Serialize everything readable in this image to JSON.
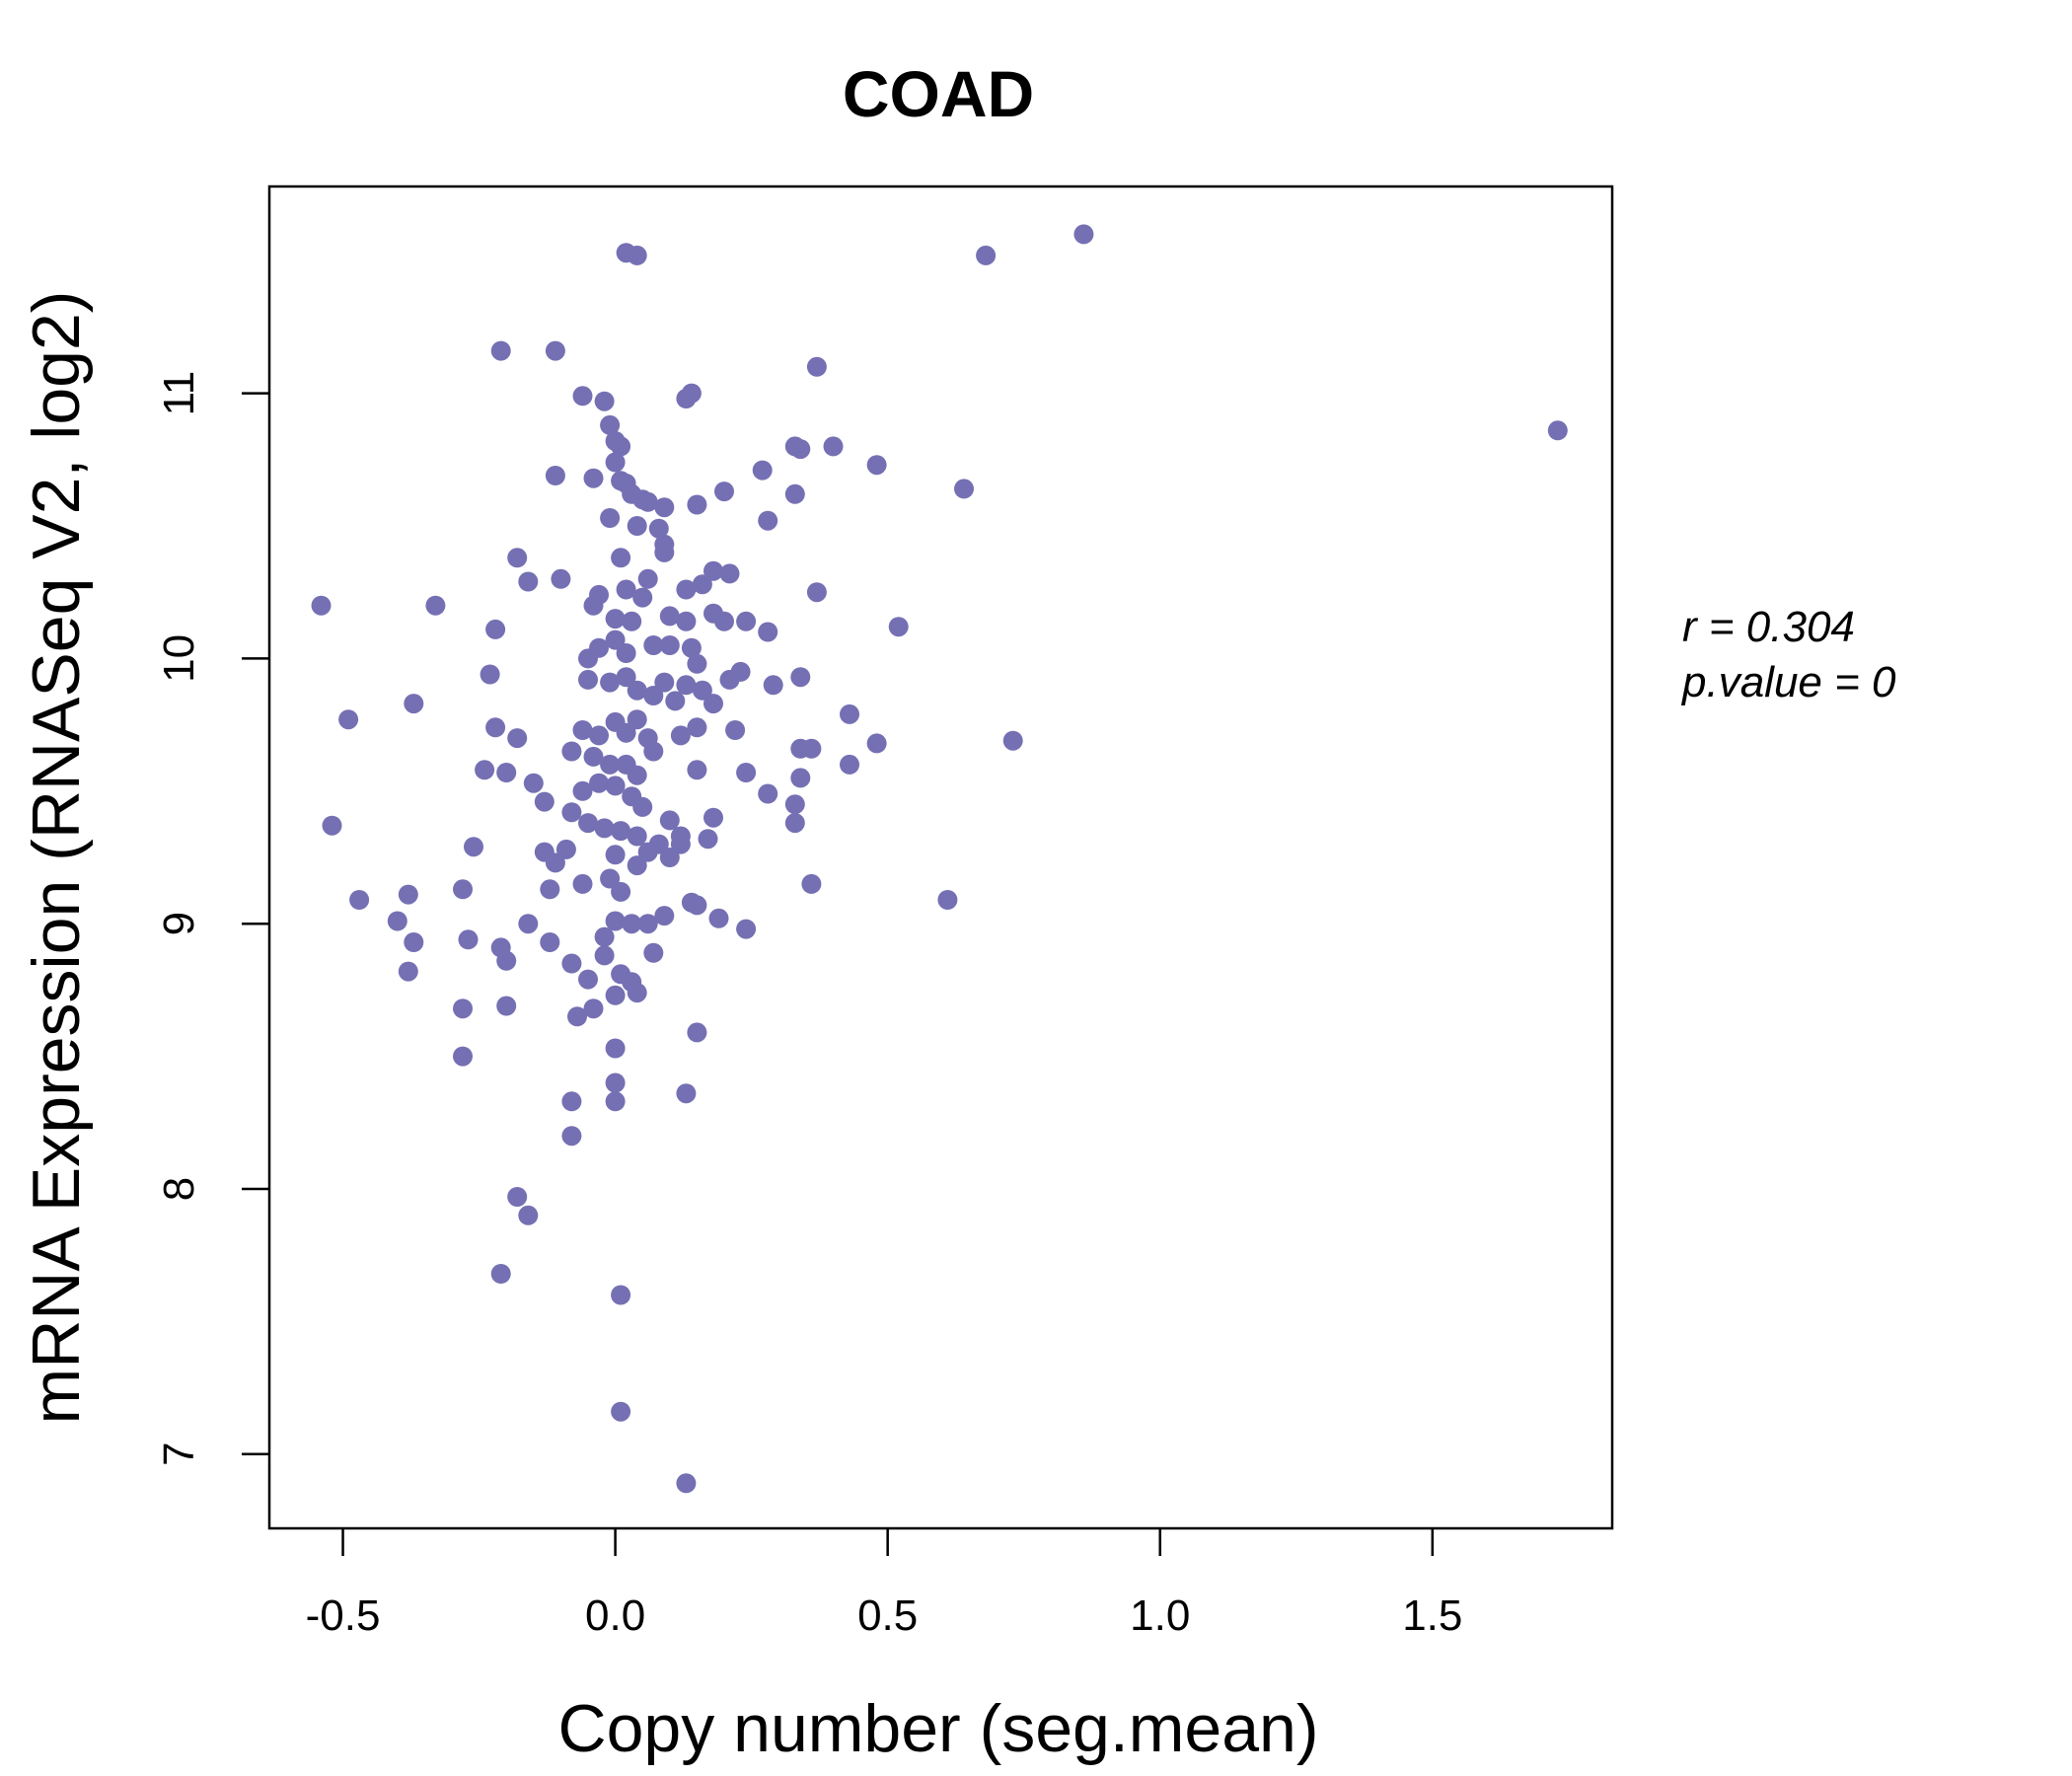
{
  "chart_data": {
    "type": "scatter",
    "title": "COAD",
    "xlabel": "Copy number (seg.mean)",
    "ylabel": "mRNA Expression (RNASeq V2, log2)",
    "xlim": [
      -0.635,
      1.83
    ],
    "ylim": [
      6.72,
      11.78
    ],
    "xticks": [
      -0.5,
      0.0,
      0.5,
      1.0,
      1.5
    ],
    "xtick_labels": [
      "-0.5",
      "0.0",
      "0.5",
      "1.0",
      "1.5"
    ],
    "yticks": [
      7,
      8,
      9,
      10,
      11
    ],
    "ytick_labels": [
      "7",
      "8",
      "9",
      "10",
      "11"
    ],
    "grid": false,
    "colors": {
      "points": "#7570B3",
      "title": "#7570B3",
      "text": "#000000"
    },
    "stats": {
      "r_label": "r = 0.304",
      "p_label": "p.value = 0"
    },
    "points": [
      [
        1.73,
        10.86
      ],
      [
        0.86,
        11.6
      ],
      [
        0.68,
        11.52
      ],
      [
        0.02,
        11.53
      ],
      [
        0.04,
        11.52
      ],
      [
        -0.21,
        11.16
      ],
      [
        -0.11,
        11.16
      ],
      [
        0.37,
        11.1
      ],
      [
        -0.06,
        10.99
      ],
      [
        -0.02,
        10.97
      ],
      [
        0.13,
        10.98
      ],
      [
        0.14,
        11.0
      ],
      [
        -0.01,
        10.88
      ],
      [
        0.0,
        10.82
      ],
      [
        0.01,
        10.8
      ],
      [
        0.33,
        10.8
      ],
      [
        0.34,
        10.79
      ],
      [
        0.4,
        10.8
      ],
      [
        0.48,
        10.73
      ],
      [
        0.0,
        10.74
      ],
      [
        -0.11,
        10.69
      ],
      [
        -0.04,
        10.68
      ],
      [
        0.01,
        10.67
      ],
      [
        0.02,
        10.66
      ],
      [
        0.03,
        10.62
      ],
      [
        0.05,
        10.6
      ],
      [
        0.06,
        10.59
      ],
      [
        0.09,
        10.57
      ],
      [
        0.15,
        10.58
      ],
      [
        0.2,
        10.63
      ],
      [
        0.27,
        10.71
      ],
      [
        0.33,
        10.62
      ],
      [
        0.64,
        10.64
      ],
      [
        -0.01,
        10.53
      ],
      [
        0.04,
        10.5
      ],
      [
        0.08,
        10.49
      ],
      [
        0.09,
        10.43
      ],
      [
        0.09,
        10.4
      ],
      [
        0.28,
        10.52
      ],
      [
        -0.18,
        10.38
      ],
      [
        0.01,
        10.38
      ],
      [
        -0.16,
        10.29
      ],
      [
        -0.1,
        10.3
      ],
      [
        0.06,
        10.3
      ],
      [
        0.02,
        10.26
      ],
      [
        -0.03,
        10.24
      ],
      [
        0.05,
        10.23
      ],
      [
        0.13,
        10.26
      ],
      [
        0.16,
        10.28
      ],
      [
        0.18,
        10.33
      ],
      [
        0.21,
        10.32
      ],
      [
        0.37,
        10.25
      ],
      [
        -0.54,
        10.2
      ],
      [
        -0.33,
        10.2
      ],
      [
        -0.22,
        10.11
      ],
      [
        -0.04,
        10.2
      ],
      [
        0.0,
        10.15
      ],
      [
        0.03,
        10.14
      ],
      [
        0.1,
        10.16
      ],
      [
        0.13,
        10.14
      ],
      [
        0.18,
        10.17
      ],
      [
        0.2,
        10.14
      ],
      [
        0.24,
        10.14
      ],
      [
        0.28,
        10.1
      ],
      [
        0.52,
        10.12
      ],
      [
        -0.23,
        9.94
      ],
      [
        -0.05,
        10.0
      ],
      [
        -0.03,
        10.04
      ],
      [
        0.0,
        10.07
      ],
      [
        0.02,
        10.02
      ],
      [
        0.07,
        10.05
      ],
      [
        0.1,
        10.05
      ],
      [
        0.14,
        10.04
      ],
      [
        0.15,
        9.98
      ],
      [
        -0.05,
        9.92
      ],
      [
        -0.01,
        9.91
      ],
      [
        0.02,
        9.93
      ],
      [
        0.04,
        9.88
      ],
      [
        0.07,
        9.86
      ],
      [
        0.09,
        9.91
      ],
      [
        0.11,
        9.84
      ],
      [
        0.13,
        9.9
      ],
      [
        0.16,
        9.88
      ],
      [
        0.18,
        9.83
      ],
      [
        0.21,
        9.92
      ],
      [
        0.23,
        9.95
      ],
      [
        0.29,
        9.9
      ],
      [
        0.34,
        9.93
      ],
      [
        -0.49,
        9.77
      ],
      [
        -0.37,
        9.83
      ],
      [
        -0.22,
        9.74
      ],
      [
        -0.18,
        9.7
      ],
      [
        -0.06,
        9.73
      ],
      [
        -0.03,
        9.71
      ],
      [
        0.0,
        9.76
      ],
      [
        0.02,
        9.72
      ],
      [
        0.04,
        9.77
      ],
      [
        0.06,
        9.7
      ],
      [
        0.12,
        9.71
      ],
      [
        0.15,
        9.74
      ],
      [
        0.22,
        9.73
      ],
      [
        0.43,
        9.79
      ],
      [
        -0.08,
        9.65
      ],
      [
        -0.04,
        9.63
      ],
      [
        -0.01,
        9.6
      ],
      [
        0.02,
        9.6
      ],
      [
        0.04,
        9.56
      ],
      [
        0.07,
        9.65
      ],
      [
        0.15,
        9.58
      ],
      [
        0.24,
        9.57
      ],
      [
        0.34,
        9.66
      ],
      [
        0.36,
        9.66
      ],
      [
        0.43,
        9.6
      ],
      [
        0.48,
        9.68
      ],
      [
        0.73,
        9.69
      ],
      [
        -0.24,
        9.58
      ],
      [
        -0.2,
        9.57
      ],
      [
        -0.15,
        9.53
      ],
      [
        -0.13,
        9.46
      ],
      [
        -0.06,
        9.5
      ],
      [
        -0.03,
        9.53
      ],
      [
        0.0,
        9.52
      ],
      [
        0.03,
        9.48
      ],
      [
        0.05,
        9.44
      ],
      [
        0.1,
        9.39
      ],
      [
        0.18,
        9.4
      ],
      [
        0.28,
        9.49
      ],
      [
        0.33,
        9.45
      ],
      [
        0.34,
        9.55
      ],
      [
        -0.52,
        9.37
      ],
      [
        -0.08,
        9.42
      ],
      [
        -0.05,
        9.38
      ],
      [
        -0.02,
        9.36
      ],
      [
        0.01,
        9.35
      ],
      [
        0.04,
        9.33
      ],
      [
        0.08,
        9.3
      ],
      [
        0.12,
        9.33
      ],
      [
        0.17,
        9.32
      ],
      [
        0.33,
        9.38
      ],
      [
        -0.26,
        9.29
      ],
      [
        -0.13,
        9.27
      ],
      [
        -0.11,
        9.23
      ],
      [
        -0.09,
        9.28
      ],
      [
        0.0,
        9.26
      ],
      [
        0.04,
        9.22
      ],
      [
        0.06,
        9.27
      ],
      [
        0.1,
        9.25
      ],
      [
        0.12,
        9.3
      ],
      [
        -0.47,
        9.09
      ],
      [
        -0.38,
        9.11
      ],
      [
        -0.28,
        9.13
      ],
      [
        -0.12,
        9.13
      ],
      [
        -0.06,
        9.15
      ],
      [
        -0.01,
        9.17
      ],
      [
        0.01,
        9.12
      ],
      [
        0.14,
        9.08
      ],
      [
        0.15,
        9.07
      ],
      [
        0.36,
        9.15
      ],
      [
        0.61,
        9.09
      ],
      [
        -0.4,
        9.01
      ],
      [
        -0.37,
        8.93
      ],
      [
        -0.27,
        8.94
      ],
      [
        -0.21,
        8.91
      ],
      [
        -0.16,
        9.0
      ],
      [
        -0.12,
        8.93
      ],
      [
        -0.02,
        8.95
      ],
      [
        0.0,
        9.01
      ],
      [
        0.03,
        9.0
      ],
      [
        0.06,
        9.0
      ],
      [
        0.09,
        9.03
      ],
      [
        0.19,
        9.02
      ],
      [
        0.24,
        8.98
      ],
      [
        -0.38,
        8.82
      ],
      [
        -0.2,
        8.86
      ],
      [
        -0.08,
        8.85
      ],
      [
        -0.05,
        8.79
      ],
      [
        -0.02,
        8.88
      ],
      [
        0.01,
        8.81
      ],
      [
        0.03,
        8.78
      ],
      [
        0.04,
        8.74
      ],
      [
        0.07,
        8.89
      ],
      [
        -0.28,
        8.68
      ],
      [
        -0.2,
        8.69
      ],
      [
        -0.07,
        8.65
      ],
      [
        -0.04,
        8.68
      ],
      [
        0.0,
        8.73
      ],
      [
        -0.28,
        8.5
      ],
      [
        0.0,
        8.53
      ],
      [
        0.15,
        8.59
      ],
      [
        -0.08,
        8.33
      ],
      [
        0.0,
        8.4
      ],
      [
        0.0,
        8.33
      ],
      [
        0.13,
        8.36
      ],
      [
        -0.08,
        8.2
      ],
      [
        -0.18,
        7.97
      ],
      [
        -0.16,
        7.9
      ],
      [
        -0.21,
        7.68
      ],
      [
        0.01,
        7.6
      ],
      [
        0.01,
        7.16
      ],
      [
        0.13,
        6.89
      ]
    ]
  }
}
